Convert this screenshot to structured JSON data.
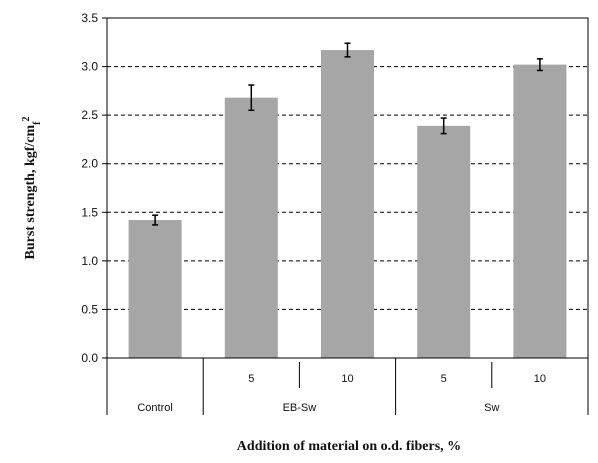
{
  "chart_data": {
    "type": "bar",
    "title": "",
    "xlabel": "Addition of material on o.d. fibers, %",
    "ylabel": "Burst strength, kgf/cm",
    "ylabel_sub": "f",
    "ylabel_sup": "2",
    "ylim": [
      0,
      3.5
    ],
    "yticks": [
      "0.0",
      "0.5",
      "1.0",
      "1.5",
      "2.0",
      "2.5",
      "3.0",
      "3.5"
    ],
    "grid": true,
    "bar_color": "#a6a6a6",
    "categories": [
      {
        "group": "Control",
        "level": ""
      },
      {
        "group": "EB-Sw",
        "level": "5"
      },
      {
        "group": "EB-Sw",
        "level": "10"
      },
      {
        "group": "Sw",
        "level": "5"
      },
      {
        "group": "Sw",
        "level": "10"
      }
    ],
    "groups": [
      "Control",
      "EB-Sw",
      "Sw"
    ],
    "values": [
      1.42,
      2.68,
      3.17,
      2.39,
      3.02
    ],
    "errors": [
      0.05,
      0.13,
      0.07,
      0.08,
      0.06
    ]
  }
}
